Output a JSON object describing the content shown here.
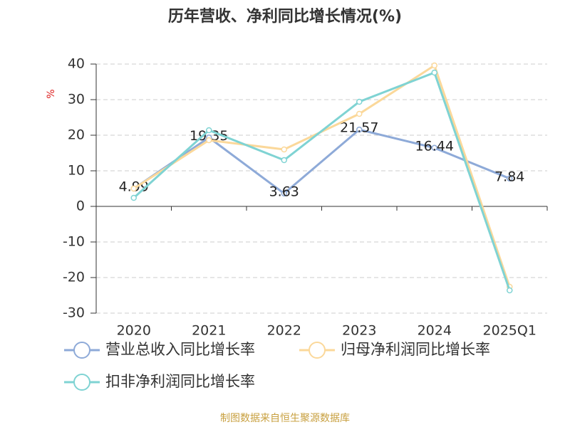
{
  "chart_data": {
    "type": "line",
    "title": "历年营收、净利同比增长情况(%)",
    "y_label": "%",
    "categories": [
      "2020",
      "2021",
      "2022",
      "2023",
      "2024",
      "2025Q1"
    ],
    "series": [
      {
        "name": "营业总收入同比增长率",
        "color": "#8eaad8",
        "values": [
          4.99,
          19.35,
          3.63,
          21.57,
          16.44,
          7.84
        ],
        "show_labels": true
      },
      {
        "name": "归母净利润同比增长率",
        "color": "#fbd89a",
        "values": [
          5,
          18.6,
          16,
          26,
          39.6,
          -22.6
        ]
      },
      {
        "name": "扣非净利润同比增长率",
        "color": "#7fd3d3",
        "values": [
          2.4,
          21.4,
          13,
          29.4,
          37.6,
          -23.6
        ]
      }
    ],
    "ylim": [
      -30,
      40
    ],
    "yticks": [
      -30,
      -20,
      -10,
      0,
      10,
      20,
      30,
      40
    ],
    "grid": true,
    "source": "制图数据来自恒生聚源数据库"
  }
}
